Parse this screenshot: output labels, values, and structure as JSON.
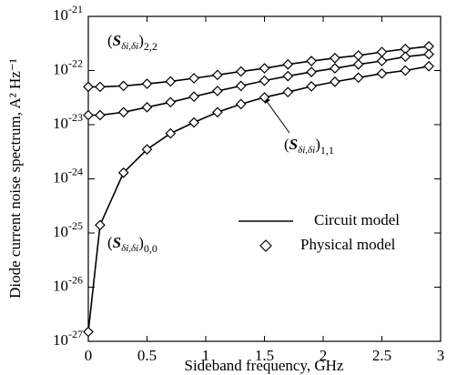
{
  "chart_data": {
    "type": "line",
    "x_label": "Sideband frequency, GHz",
    "y_label": "Diode current noise spectrum, A² Hz⁻¹",
    "log_y": true,
    "xlim": [
      0,
      3
    ],
    "xticks": [
      0,
      0.5,
      1,
      1.5,
      2,
      2.5,
      3
    ],
    "ylim": [
      1e-27,
      1e-21
    ],
    "yticks": [
      {
        "value": 1e-21,
        "label": "10-21"
      },
      {
        "value": 1e-22,
        "label": "10-22"
      },
      {
        "value": 1e-23,
        "label": "10-23"
      },
      {
        "value": 1e-24,
        "label": "10-24"
      },
      {
        "value": 1e-25,
        "label": "10-25"
      },
      {
        "value": 1e-26,
        "label": "10-26"
      },
      {
        "value": 1e-27,
        "label": "10-27"
      }
    ],
    "legend": [
      "Circuit model",
      "Physical model"
    ],
    "color": "#000000",
    "x": [
      0,
      0.1,
      0.3,
      0.5,
      0.7,
      0.9,
      1.1,
      1.3,
      1.5,
      1.7,
      1.9,
      2.1,
      2.3,
      2.5,
      2.7,
      2.9
    ],
    "series": [
      {
        "name": "(Sδi,δi)2,2",
        "values": [
          5e-23,
          5e-23,
          5.2e-23,
          5.7e-23,
          6.3e-23,
          7.2e-23,
          8.3e-23,
          9.6e-23,
          1.1e-22,
          1.3e-22,
          1.5e-22,
          1.7e-22,
          1.9e-22,
          2.2e-22,
          2.5e-22,
          2.8e-22
        ]
      },
      {
        "name": "(Sδi,δi)1,1",
        "values": [
          1.5e-23,
          1.5e-23,
          1.7e-23,
          2.1e-23,
          2.6e-23,
          3.3e-23,
          4.2e-23,
          5.2e-23,
          6.5e-23,
          7.9e-23,
          9.4e-23,
          1.1e-22,
          1.3e-22,
          1.5e-22,
          1.8e-22,
          2e-22
        ]
      },
      {
        "name": "(Sδi,δi)0,0",
        "values": [
          1.5e-27,
          1.4e-25,
          1.3e-24,
          3.5e-24,
          6.9e-24,
          1.1e-23,
          1.7e-23,
          2.4e-23,
          3.2e-23,
          4e-23,
          5.1e-23,
          6.2e-23,
          7.4e-23,
          8.8e-23,
          1e-22,
          1.2e-22
        ]
      }
    ]
  }
}
